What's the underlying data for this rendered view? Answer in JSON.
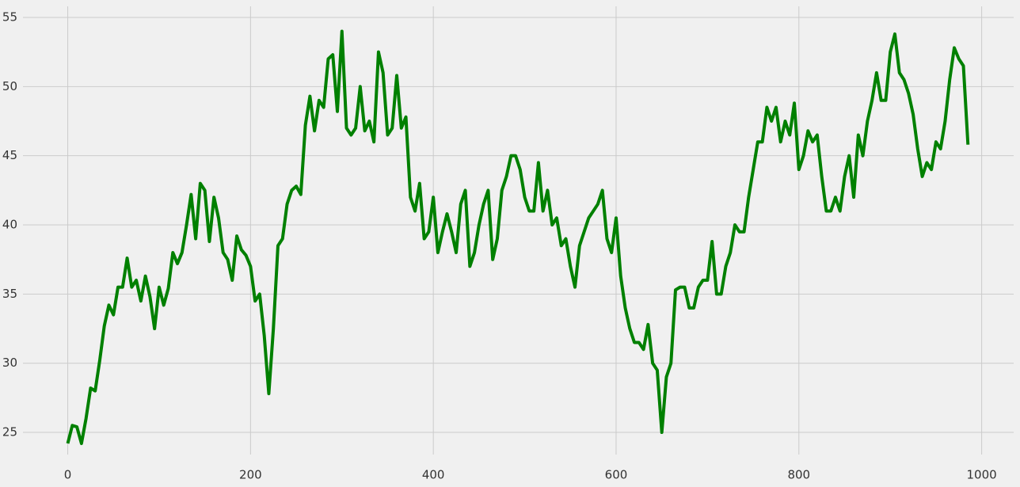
{
  "chart_data": {
    "type": "line",
    "x": [
      0,
      5,
      10,
      15,
      20,
      25,
      30,
      35,
      40,
      45,
      50,
      55,
      60,
      65,
      70,
      75,
      80,
      85,
      90,
      95,
      100,
      105,
      110,
      115,
      120,
      125,
      130,
      135,
      140,
      145,
      150,
      155,
      160,
      165,
      170,
      175,
      180,
      185,
      190,
      195,
      200,
      205,
      210,
      215,
      220,
      225,
      230,
      235,
      240,
      245,
      250,
      255,
      260,
      265,
      270,
      275,
      280,
      285,
      290,
      295,
      300,
      305,
      310,
      315,
      320,
      325,
      330,
      335,
      340,
      345,
      350,
      355,
      360,
      365,
      370,
      375,
      380,
      385,
      390,
      395,
      400,
      405,
      410,
      415,
      420,
      425,
      430,
      435,
      440,
      445,
      450,
      455,
      460,
      465,
      470,
      475,
      480,
      485,
      490,
      495,
      500,
      505,
      510,
      515,
      520,
      525,
      530,
      535,
      540,
      545,
      550,
      555,
      560,
      565,
      570,
      575,
      580,
      585,
      590,
      595,
      600,
      605,
      610,
      615,
      620,
      625,
      630,
      635,
      640,
      645,
      650,
      655,
      660,
      665,
      670,
      675,
      680,
      685,
      690,
      695,
      700,
      705,
      710,
      715,
      720,
      725,
      730,
      735,
      740,
      745,
      750,
      755,
      760,
      765,
      770,
      775,
      780,
      785,
      790,
      795,
      800,
      805,
      810,
      815,
      820,
      825,
      830,
      835,
      840,
      845,
      850,
      855,
      860,
      865,
      870,
      875,
      880,
      885,
      890,
      895,
      900,
      905,
      910,
      915,
      920,
      925,
      930,
      935,
      940,
      945,
      950,
      955,
      960,
      965,
      970,
      975,
      980,
      985
    ],
    "series": [
      {
        "color": "#008000",
        "values": [
          24.2,
          25.5,
          25.4,
          24.2,
          26.0,
          28.2,
          28.0,
          30.2,
          32.7,
          34.2,
          33.5,
          35.5,
          35.5,
          37.6,
          35.5,
          36.0,
          34.5,
          36.3,
          34.8,
          32.5,
          35.5,
          34.2,
          35.4,
          38.0,
          37.2,
          38.0,
          40.0,
          42.2,
          39.0,
          43.0,
          42.5,
          38.8,
          42.0,
          40.5,
          38.0,
          37.5,
          36.0,
          39.2,
          38.2,
          37.8,
          37.0,
          34.5,
          35.0,
          32.0,
          27.8,
          32.5,
          38.5,
          39.0,
          41.5,
          42.5,
          42.8,
          42.2,
          47.2,
          49.3,
          46.8,
          49.0,
          48.5,
          52.0,
          52.3,
          48.2,
          54.0,
          47.0,
          46.5,
          47.0,
          50.0,
          46.8,
          47.5,
          46.0,
          52.5,
          51.0,
          46.5,
          47.0,
          50.8,
          47.0,
          47.8,
          42.0,
          41.0,
          43.0,
          39.0,
          39.5,
          42.0,
          38.0,
          39.5,
          40.8,
          39.5,
          38.0,
          41.5,
          42.5,
          37.0,
          38.0,
          40.0,
          41.5,
          42.5,
          37.5,
          39.0,
          42.5,
          43.5,
          45.0,
          45.0,
          44.0,
          42.0,
          41.0,
          41.0,
          44.5,
          41.0,
          42.5,
          40.0,
          40.5,
          38.5,
          39.0,
          37.0,
          35.5,
          38.5,
          39.5,
          40.5,
          41.0,
          41.5,
          42.5,
          39.0,
          38.0,
          40.5,
          36.3,
          34.0,
          32.5,
          31.5,
          31.5,
          31.0,
          32.8,
          30.0,
          29.5,
          25.0,
          29.0,
          30.0,
          35.3,
          35.5,
          35.5,
          34.0,
          34.0,
          35.5,
          36.0,
          36.0,
          38.8,
          35.0,
          35.0,
          37.0,
          38.0,
          40.0,
          39.5,
          39.5,
          42.0,
          44.0,
          46.0,
          46.0,
          48.5,
          47.5,
          48.5,
          46.0,
          47.5,
          46.5,
          48.8,
          44.0,
          45.0,
          46.8,
          46.0,
          46.5,
          43.5,
          41.0,
          41.0,
          42.0,
          41.0,
          43.5,
          45.0,
          42.0,
          46.5,
          45.0,
          47.5,
          49.0,
          51.0,
          49.0,
          49.0,
          52.5,
          53.8,
          51.0,
          50.5,
          49.5,
          48.0,
          45.5,
          43.5,
          44.5,
          44.0,
          46.0,
          45.5,
          47.5,
          50.5,
          52.8,
          52.0,
          51.5,
          45.8
        ]
      }
    ],
    "xlim": [
      -49,
      1035
    ],
    "ylim": [
      23.4,
      55.8
    ],
    "xticks": [
      0,
      200,
      400,
      600,
      800,
      1000
    ],
    "yticks": [
      25,
      30,
      35,
      40,
      45,
      50,
      55
    ],
    "grid": true
  }
}
